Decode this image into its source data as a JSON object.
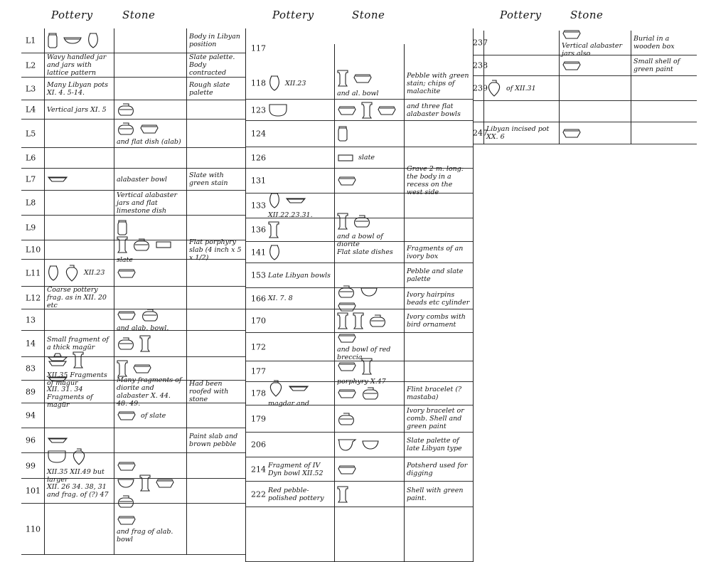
{
  "headers": [
    {
      "pottery": "Pottery",
      "stone": "Stone"
    },
    {
      "pottery": "Pottery",
      "stone": "Stone"
    },
    {
      "pottery": "Pottery",
      "stone": "Stone"
    }
  ],
  "sections": [
    {
      "rows": [
        {
          "num": "L1",
          "pottery": {
            "icons": [
              "tall-jar",
              "shallow-bowl",
              "ovoid-jar"
            ],
            "text": ""
          },
          "stone": {
            "icons": [],
            "text": ""
          },
          "remarks": "Body in Libyan position"
        },
        {
          "num": "L2",
          "pottery": {
            "icons": [],
            "text": "Wavy handled jar and jars with lattice pattern"
          },
          "stone": {
            "icons": [],
            "text": ""
          },
          "remarks": "Slate palette. Body contracted"
        },
        {
          "num": "L3",
          "pottery": {
            "icons": [],
            "text": "Many Libyan pots XI. 4. 5-14."
          },
          "stone": {
            "icons": [],
            "text": ""
          },
          "remarks": "Rough slate palette"
        },
        {
          "num": "L4",
          "pottery": {
            "icons": [],
            "text": "Vertical jars XI. 5"
          },
          "stone": {
            "icons": [
              "squat-jar"
            ],
            "text": ""
          },
          "remarks": ""
        },
        {
          "num": "L5",
          "pottery": {
            "icons": [],
            "text": ""
          },
          "stone": {
            "icons": [
              "squat-jar",
              "rim-bowl"
            ],
            "text": "and flat dish (alab)"
          },
          "remarks": ""
        },
        {
          "num": "L6",
          "pottery": {
            "icons": [],
            "text": ""
          },
          "stone": {
            "icons": [],
            "text": ""
          },
          "remarks": ""
        },
        {
          "num": "L7",
          "pottery": {
            "icons": [
              "shallow-dish"
            ],
            "text": ""
          },
          "stone": {
            "icons": [],
            "text": "alabaster bowl"
          },
          "remarks": "Slate with green stain"
        },
        {
          "num": "L8",
          "pottery": {
            "icons": [],
            "text": ""
          },
          "stone": {
            "icons": [],
            "text": "Vertical alabaster jars and flat limestone dish"
          },
          "remarks": ""
        },
        {
          "num": "L9",
          "pottery": {
            "icons": [],
            "text": ""
          },
          "stone": {
            "icons": [
              "tall-jar"
            ],
            "text": ""
          },
          "remarks": ""
        },
        {
          "num": "L10",
          "pottery": {
            "icons": [],
            "text": ""
          },
          "stone": {
            "icons": [
              "cylinder-jar",
              "squat-jar",
              "slab"
            ],
            "text": "slate"
          },
          "remarks": "Flat porphyry slab (4 inch x 5 x 1/2)"
        },
        {
          "num": "L11",
          "pottery": {
            "icons": [
              "ovoid-jar",
              "shouldered-jar"
            ],
            "text": "XII.23"
          },
          "stone": {
            "icons": [
              "rim-bowl"
            ],
            "text": ""
          },
          "remarks": ""
        },
        {
          "num": "L12",
          "pottery": {
            "icons": [],
            "text": "Coarse pottery frag. as in XII. 20 etc"
          },
          "stone": {
            "icons": [],
            "text": ""
          },
          "remarks": ""
        },
        {
          "num": "13",
          "pottery": {
            "icons": [],
            "text": ""
          },
          "stone": {
            "icons": [
              "rim-bowl",
              "squat-jar"
            ],
            "text": "and alab. bowl."
          },
          "remarks": ""
        },
        {
          "num": "14",
          "pottery": {
            "icons": [],
            "text": "Small fragment of a thick magür"
          },
          "stone": {
            "icons": [
              "squat-jar",
              "cylinder-jar"
            ],
            "text": ""
          },
          "remarks": ""
        },
        {
          "num": "83",
          "pottery": {
            "icons": [
              "stacked-dishes",
              "cylinder-jar"
            ],
            "text": "XII.35 Fragments of magür"
          },
          "stone": {
            "icons": [
              "cylinder-jar",
              "rim-bowl"
            ],
            "text": ""
          },
          "remarks": ""
        },
        {
          "num": "89",
          "pottery": {
            "icons": [
              "shallow-dish"
            ],
            "text": "XII. 31. 34 Fragments of magür"
          },
          "stone": {
            "icons": [],
            "text": "Many fragments of diorite and alabaster X. 44. 48. 49."
          },
          "remarks": "Had been roofed with stone"
        },
        {
          "num": "94",
          "pottery": {
            "icons": [],
            "text": ""
          },
          "stone": {
            "icons": [
              "rim-bowl"
            ],
            "text": "of slate"
          },
          "remarks": ""
        },
        {
          "num": "96",
          "pottery": {
            "icons": [
              "shallow-dish"
            ],
            "text": ""
          },
          "stone": {
            "icons": [],
            "text": ""
          },
          "remarks": "Paint slab and brown pebble"
        },
        {
          "num": "99",
          "pottery": {
            "icons": [
              "deep-bowl",
              "shouldered-jar"
            ],
            "text": "XII.35 XII.49 but larger"
          },
          "stone": {
            "icons": [
              "rim-bowl"
            ],
            "text": ""
          },
          "remarks": ""
        },
        {
          "num": "101",
          "pottery": {
            "icons": [],
            "text": "XII. 26 34. 38, 31 and frag. of (?) 47"
          },
          "stone": {
            "icons": [
              "bowl",
              "cylinder-jar",
              "rim-bowl",
              "squat-jar"
            ],
            "text": ""
          },
          "remarks": ""
        },
        {
          "num": "110",
          "pottery": {
            "icons": [],
            "text": ""
          },
          "stone": {
            "icons": [
              "rim-bowl"
            ],
            "text": "and frag of alab. bowl"
          },
          "remarks": ""
        }
      ]
    },
    {
      "rows": [
        {
          "num": "117",
          "pottery": {
            "icons": [],
            "text": ""
          },
          "stone": {
            "icons": [],
            "text": ""
          },
          "remarks": ""
        },
        {
          "num": "118",
          "pottery": {
            "icons": [
              "ovoid-jar"
            ],
            "text": "XII.23"
          },
          "stone": {
            "icons": [
              "cylinder-jar",
              "rim-bowl"
            ],
            "text": "and al. bowl"
          },
          "remarks": "Pebble with green stain; chips of malachite"
        },
        {
          "num": "123",
          "pottery": {
            "icons": [
              "deep-bowl"
            ],
            "text": ""
          },
          "stone": {
            "icons": [
              "rim-bowl",
              "cylinder-jar",
              "rim-bowl"
            ],
            "text": ""
          },
          "remarks": "and three flat alabaster bowls"
        },
        {
          "num": "124",
          "pottery": {
            "icons": [],
            "text": ""
          },
          "stone": {
            "icons": [
              "tall-jar"
            ],
            "text": ""
          },
          "remarks": ""
        },
        {
          "num": "126",
          "pottery": {
            "icons": [],
            "text": ""
          },
          "stone": {
            "icons": [
              "slab"
            ],
            "text": "slate"
          },
          "remarks": ""
        },
        {
          "num": "131",
          "pottery": {
            "icons": [],
            "text": ""
          },
          "stone": {
            "icons": [
              "rim-bowl"
            ],
            "text": ""
          },
          "remarks": "Grave 2 m. long: the body in a recess on the west side"
        },
        {
          "num": "133",
          "pottery": {
            "icons": [
              "ovoid-jar",
              "shallow-dish"
            ],
            "text": "XII.22.23.31."
          },
          "stone": {
            "icons": [],
            "text": ""
          },
          "remarks": ""
        },
        {
          "num": "136",
          "pottery": {
            "icons": [
              "cylinder-jar"
            ],
            "text": ""
          },
          "stone": {
            "icons": [
              "cylinder-jar",
              "squat-jar"
            ],
            "text": "and a bowl of diorite"
          },
          "remarks": ""
        },
        {
          "num": "141",
          "pottery": {
            "icons": [
              "ovoid-jar"
            ],
            "text": ""
          },
          "stone": {
            "icons": [],
            "text": "Flat slate dishes"
          },
          "remarks": "Fragments of an ivory box"
        },
        {
          "num": "153",
          "pottery": {
            "icons": [],
            "text": "Late Libyan bowls"
          },
          "stone": {
            "icons": [],
            "text": ""
          },
          "remarks": "Pebble and slate palette"
        },
        {
          "num": "166",
          "pottery": {
            "icons": [],
            "text": "XI. 7. 8"
          },
          "stone": {
            "icons": [
              "squat-jar",
              "bowl",
              "rim-bowl"
            ],
            "text": ""
          },
          "remarks": "Ivory hairpins beads etc cylinder"
        },
        {
          "num": "170",
          "pottery": {
            "icons": [],
            "text": ""
          },
          "stone": {
            "icons": [
              "cylinder-jar",
              "cylinder-jar",
              "squat-jar"
            ],
            "text": ""
          },
          "remarks": "Ivory combs with bird ornament"
        },
        {
          "num": "172",
          "pottery": {
            "icons": [],
            "text": ""
          },
          "stone": {
            "icons": [
              "rim-bowl"
            ],
            "text": "and bowl of red breccia"
          },
          "remarks": ""
        },
        {
          "num": "177",
          "pottery": {
            "icons": [],
            "text": ""
          },
          "stone": {
            "icons": [
              "rim-bowl",
              "cylinder-jar"
            ],
            "text": "porphyry X.47"
          },
          "remarks": ""
        },
        {
          "num": "178",
          "pottery": {
            "icons": [
              "shouldered-jar",
              "shallow-dish"
            ],
            "text": "magdar and"
          },
          "stone": {
            "icons": [
              "rim-bowl",
              "squat-jar"
            ],
            "text": ""
          },
          "remarks": "Flint bracelet (? mastaba)"
        },
        {
          "num": "179",
          "pottery": {
            "icons": [],
            "text": ""
          },
          "stone": {
            "icons": [
              "squat-jar"
            ],
            "text": ""
          },
          "remarks": "Ivory bracelet or comb. Shell and green paint"
        },
        {
          "num": "206",
          "pottery": {
            "icons": [],
            "text": ""
          },
          "stone": {
            "icons": [
              "spouted-bowl",
              "bowl"
            ],
            "text": ""
          },
          "remarks": "Slate palette of late Libyan type"
        },
        {
          "num": "214",
          "pottery": {
            "icons": [],
            "text": "Fragment of IV Dyn bowl XII.52"
          },
          "stone": {
            "icons": [
              "rim-bowl"
            ],
            "text": ""
          },
          "remarks": "Potsherd used for digging"
        },
        {
          "num": "222",
          "pottery": {
            "icons": [],
            "text": "Red pebble-polished pottery"
          },
          "stone": {
            "icons": [
              "cylinder-jar"
            ],
            "text": ""
          },
          "remarks": "Shell with green paint."
        },
        {
          "num": "",
          "pottery": {
            "icons": [],
            "text": ""
          },
          "stone": {
            "icons": [],
            "text": ""
          },
          "remarks": ""
        }
      ]
    },
    {
      "rows": [
        {
          "num": "237",
          "pottery": {
            "icons": [],
            "text": ""
          },
          "stone": {
            "icons": [
              "rim-bowl"
            ],
            "text": "Vertical alabaster jars also"
          },
          "remarks": "Burial in a wooden box"
        },
        {
          "num": "238",
          "pottery": {
            "icons": [],
            "text": ""
          },
          "stone": {
            "icons": [
              "rim-bowl"
            ],
            "text": ""
          },
          "remarks": "Small shell of green paint"
        },
        {
          "num": "239",
          "pottery": {
            "icons": [
              "shouldered-jar"
            ],
            "text": "of XII.31"
          },
          "stone": {
            "icons": [],
            "text": ""
          },
          "remarks": ""
        },
        {
          "num": "",
          "pottery": {
            "icons": [],
            "text": ""
          },
          "stone": {
            "icons": [],
            "text": ""
          },
          "remarks": ""
        },
        {
          "num": "247",
          "pottery": {
            "icons": [],
            "text": "Libyan incised pot XX. 6"
          },
          "stone": {
            "icons": [
              "rim-bowl"
            ],
            "text": ""
          },
          "remarks": ""
        }
      ]
    }
  ]
}
